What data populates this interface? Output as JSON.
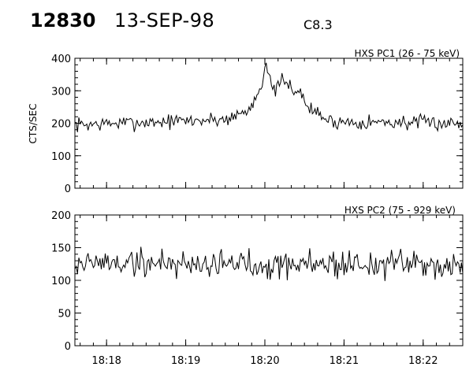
{
  "header": {
    "event_id": "12830",
    "date": "13-SEP-98",
    "goes_class": "C8.3"
  },
  "chart_data": [
    {
      "type": "line",
      "title": "HXS PC1 (26 - 75 keV)",
      "ylabel": "CTS/SEC",
      "xlabel": "",
      "xlim": [
        "18:17:36",
        "18:22:30"
      ],
      "ylim": [
        0,
        400
      ],
      "yticks": [
        0,
        100,
        200,
        300,
        400
      ],
      "xticks": [
        "18:18",
        "18:19",
        "18:20",
        "18:21",
        "18:22"
      ],
      "grid": false,
      "baseline": 200,
      "noise": 14,
      "seed": 7,
      "events": [
        {
          "t": "18:17:36",
          "v": 195
        },
        {
          "t": "18:19:30",
          "v": 212
        },
        {
          "t": "18:19:48",
          "v": 240
        },
        {
          "t": "18:19:57",
          "v": 315
        },
        {
          "t": "18:20:01",
          "v": 390
        },
        {
          "t": "18:20:06",
          "v": 290
        },
        {
          "t": "18:20:12",
          "v": 330
        },
        {
          "t": "18:20:25",
          "v": 300
        },
        {
          "t": "18:20:35",
          "v": 240
        },
        {
          "t": "18:20:50",
          "v": 205
        },
        {
          "t": "18:22:30",
          "v": 200
        }
      ],
      "spikes": [
        {
          "t": "18:20:40",
          "v": 250
        }
      ]
    },
    {
      "type": "line",
      "title": "HXS PC2 (75 - 929 keV)",
      "ylabel": "",
      "xlabel": "",
      "xlim": [
        "18:17:36",
        "18:22:30"
      ],
      "ylim": [
        0,
        200
      ],
      "yticks": [
        0,
        50,
        100,
        150,
        200
      ],
      "xticks": [
        "18:18",
        "18:19",
        "18:20",
        "18:21",
        "18:22"
      ],
      "grid": false,
      "baseline": 127,
      "noise": 14,
      "seed": 19,
      "events": [
        {
          "t": "18:17:36",
          "v": 127
        },
        {
          "t": "18:22:30",
          "v": 124
        }
      ],
      "spikes": []
    }
  ]
}
